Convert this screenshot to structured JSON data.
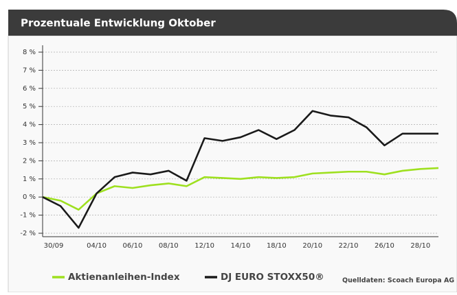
{
  "chart_data": {
    "type": "line",
    "title": "Prozentuale Entwicklung Oktober",
    "source": "Quelldaten: Scoach Europa AG",
    "categories": [
      "30/09",
      null,
      null,
      "04/10",
      null,
      "06/10",
      null,
      "08/10",
      null,
      "12/10",
      null,
      "14/10",
      null,
      "18/10",
      null,
      "20/10",
      null,
      "22/10",
      null,
      "26/10",
      null,
      "28/10",
      null
    ],
    "series": [
      {
        "name": "Aktienanleihen-Index",
        "color": "#9ee01f",
        "values": [
          0,
          -0.2,
          -0.7,
          0.2,
          0.6,
          0.5,
          0.65,
          0.75,
          0.6,
          1.1,
          1.05,
          1.0,
          1.1,
          1.05,
          1.1,
          1.3,
          1.35,
          1.4,
          1.4,
          1.25,
          1.45,
          1.55,
          1.6
        ]
      },
      {
        "name": "DJ EURO STOXX50®",
        "color": "#1a1a1a",
        "values": [
          0,
          -0.5,
          -1.7,
          0.2,
          1.1,
          1.35,
          1.25,
          1.45,
          0.9,
          3.25,
          3.1,
          3.3,
          3.7,
          3.2,
          3.7,
          4.75,
          4.5,
          4.4,
          3.85,
          2.85,
          3.5,
          3.5,
          3.5
        ]
      }
    ],
    "ylim": [
      -2,
      8
    ],
    "yticks": [
      {
        "value": -2,
        "label": "-2 %"
      },
      {
        "value": -1,
        "label": "-1 %"
      },
      {
        "value": 0,
        "label": "0 %"
      },
      {
        "value": 1,
        "label": "1 %"
      },
      {
        "value": 2,
        "label": "2 %"
      },
      {
        "value": 3,
        "label": "3 %"
      },
      {
        "value": 4,
        "label": "4 %"
      },
      {
        "value": 5,
        "label": "5 %"
      },
      {
        "value": 6,
        "label": "6 %"
      },
      {
        "value": 7,
        "label": "7 %"
      },
      {
        "value": 8,
        "label": "8 %"
      }
    ],
    "grid": true,
    "legend": "bottom"
  }
}
